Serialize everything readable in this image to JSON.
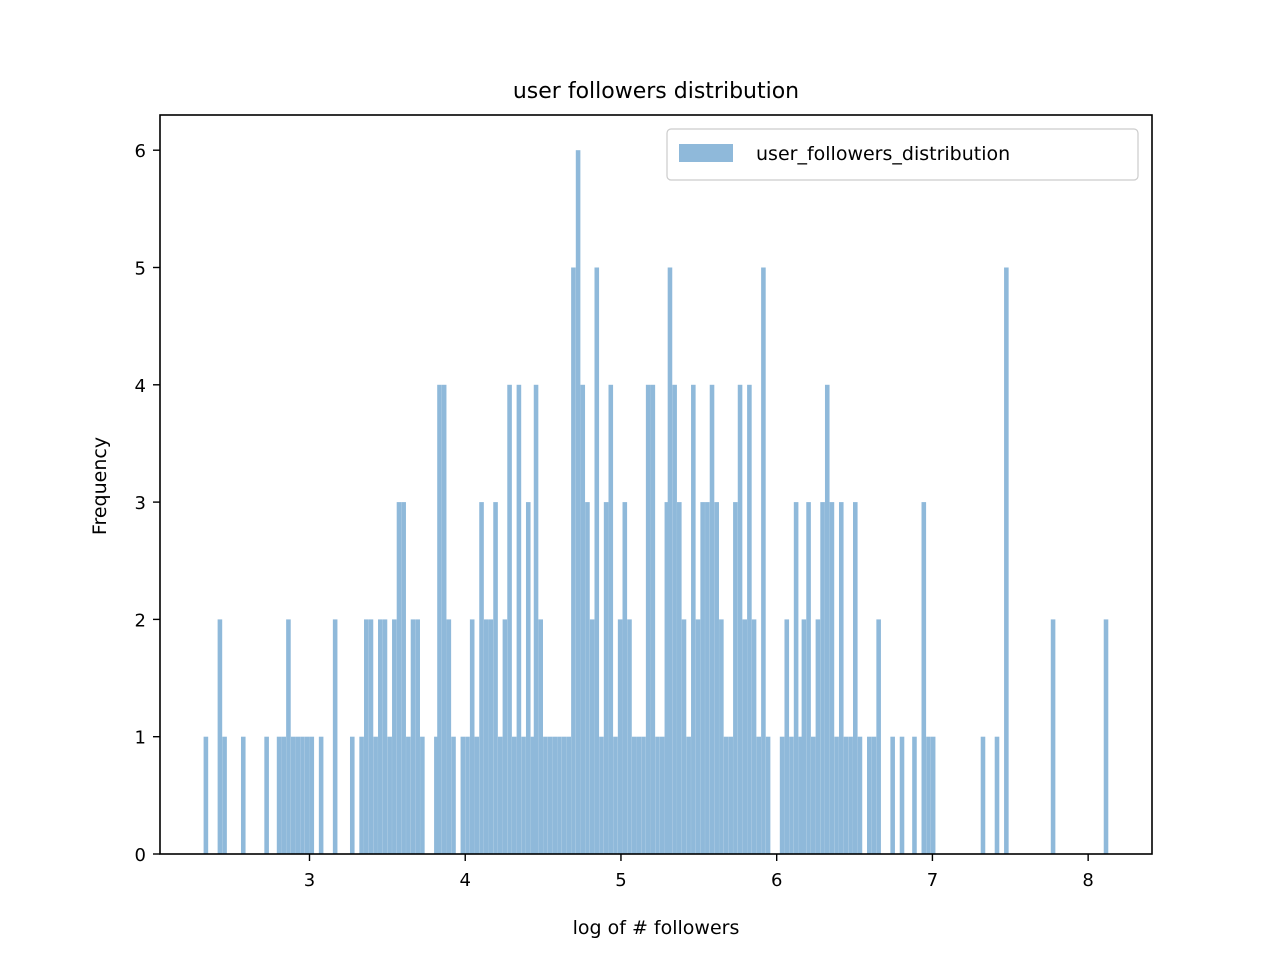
{
  "chart_data": {
    "type": "bar",
    "title": "user followers distribution",
    "xlabel": "log of # followers",
    "ylabel": "Frequency",
    "xlim": [
      2.04,
      8.41
    ],
    "ylim": [
      0,
      6.3
    ],
    "xticks": [
      3,
      4,
      5,
      6,
      7,
      8
    ],
    "yticks": [
      0,
      1,
      2,
      3,
      4,
      5,
      6
    ],
    "bin_width": 0.0294,
    "bar_color": "#8fb9da",
    "legend": {
      "label": "user_followers_distribution",
      "location": "upper-right"
    },
    "grid": false,
    "bins": [
      [
        2.32,
        1
      ],
      [
        2.41,
        2
      ],
      [
        2.44,
        1
      ],
      [
        2.56,
        1
      ],
      [
        2.71,
        1
      ],
      [
        2.79,
        1
      ],
      [
        2.82,
        1
      ],
      [
        2.85,
        2
      ],
      [
        2.88,
        1
      ],
      [
        2.91,
        1
      ],
      [
        2.94,
        1
      ],
      [
        2.97,
        1
      ],
      [
        3.0,
        1
      ],
      [
        3.06,
        1
      ],
      [
        3.15,
        2
      ],
      [
        3.26,
        1
      ],
      [
        3.32,
        1
      ],
      [
        3.35,
        2
      ],
      [
        3.38,
        2
      ],
      [
        3.41,
        1
      ],
      [
        3.44,
        2
      ],
      [
        3.47,
        2
      ],
      [
        3.5,
        1
      ],
      [
        3.53,
        2
      ],
      [
        3.56,
        3
      ],
      [
        3.59,
        3
      ],
      [
        3.62,
        1
      ],
      [
        3.65,
        2
      ],
      [
        3.68,
        2
      ],
      [
        3.71,
        1
      ],
      [
        3.8,
        1
      ],
      [
        3.82,
        4
      ],
      [
        3.85,
        4
      ],
      [
        3.88,
        2
      ],
      [
        3.91,
        1
      ],
      [
        3.97,
        1
      ],
      [
        4.0,
        1
      ],
      [
        4.03,
        2
      ],
      [
        4.06,
        1
      ],
      [
        4.09,
        3
      ],
      [
        4.12,
        2
      ],
      [
        4.15,
        2
      ],
      [
        4.18,
        3
      ],
      [
        4.21,
        1
      ],
      [
        4.24,
        2
      ],
      [
        4.27,
        4
      ],
      [
        4.3,
        1
      ],
      [
        4.33,
        4
      ],
      [
        4.36,
        1
      ],
      [
        4.39,
        3
      ],
      [
        4.42,
        1
      ],
      [
        4.44,
        4
      ],
      [
        4.47,
        2
      ],
      [
        4.5,
        1
      ],
      [
        4.53,
        1
      ],
      [
        4.56,
        1
      ],
      [
        4.59,
        1
      ],
      [
        4.62,
        1
      ],
      [
        4.65,
        1
      ],
      [
        4.68,
        5
      ],
      [
        4.71,
        6
      ],
      [
        4.74,
        4
      ],
      [
        4.77,
        3
      ],
      [
        4.8,
        2
      ],
      [
        4.83,
        5
      ],
      [
        4.86,
        1
      ],
      [
        4.89,
        3
      ],
      [
        4.92,
        4
      ],
      [
        4.95,
        1
      ],
      [
        4.98,
        2
      ],
      [
        5.01,
        3
      ],
      [
        5.04,
        2
      ],
      [
        5.07,
        1
      ],
      [
        5.1,
        1
      ],
      [
        5.13,
        1
      ],
      [
        5.16,
        4
      ],
      [
        5.19,
        4
      ],
      [
        5.22,
        1
      ],
      [
        5.25,
        1
      ],
      [
        5.28,
        3
      ],
      [
        5.3,
        5
      ],
      [
        5.33,
        4
      ],
      [
        5.36,
        3
      ],
      [
        5.39,
        2
      ],
      [
        5.42,
        1
      ],
      [
        5.45,
        4
      ],
      [
        5.48,
        2
      ],
      [
        5.51,
        3
      ],
      [
        5.54,
        3
      ],
      [
        5.57,
        4
      ],
      [
        5.6,
        3
      ],
      [
        5.63,
        2
      ],
      [
        5.66,
        1
      ],
      [
        5.69,
        1
      ],
      [
        5.72,
        3
      ],
      [
        5.75,
        4
      ],
      [
        5.78,
        2
      ],
      [
        5.81,
        4
      ],
      [
        5.84,
        2
      ],
      [
        5.87,
        1
      ],
      [
        5.9,
        5
      ],
      [
        5.93,
        1
      ],
      [
        6.02,
        1
      ],
      [
        6.05,
        2
      ],
      [
        6.08,
        1
      ],
      [
        6.11,
        3
      ],
      [
        6.14,
        1
      ],
      [
        6.16,
        2
      ],
      [
        6.19,
        3
      ],
      [
        6.22,
        1
      ],
      [
        6.25,
        2
      ],
      [
        6.28,
        3
      ],
      [
        6.31,
        4
      ],
      [
        6.34,
        3
      ],
      [
        6.37,
        1
      ],
      [
        6.4,
        3
      ],
      [
        6.43,
        1
      ],
      [
        6.46,
        1
      ],
      [
        6.49,
        3
      ],
      [
        6.52,
        1
      ],
      [
        6.58,
        1
      ],
      [
        6.61,
        1
      ],
      [
        6.64,
        2
      ],
      [
        6.73,
        1
      ],
      [
        6.79,
        1
      ],
      [
        6.87,
        1
      ],
      [
        6.93,
        3
      ],
      [
        6.96,
        1
      ],
      [
        6.99,
        1
      ],
      [
        7.31,
        1
      ],
      [
        7.4,
        1
      ],
      [
        7.46,
        5
      ],
      [
        7.76,
        2
      ],
      [
        8.1,
        2
      ]
    ]
  }
}
